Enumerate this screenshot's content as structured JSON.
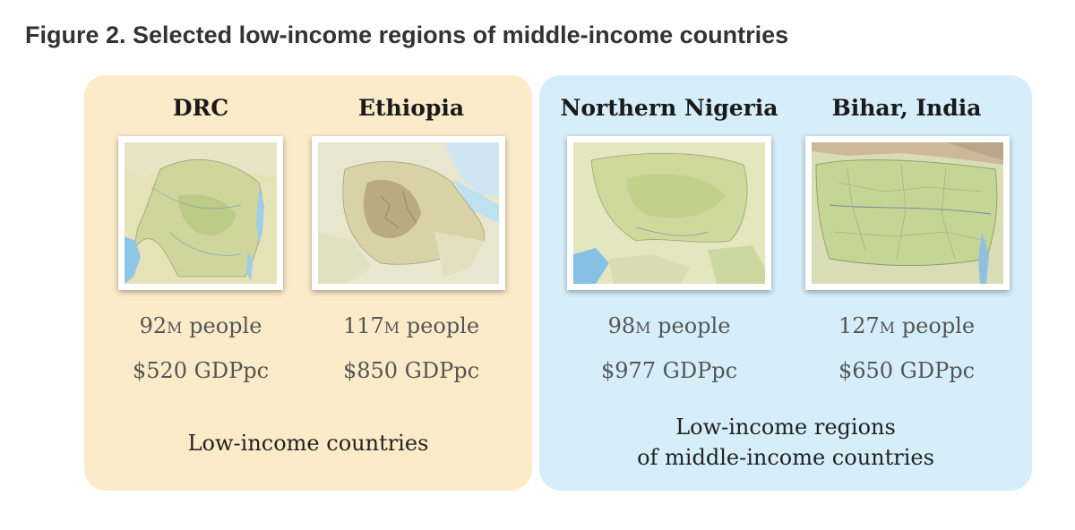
{
  "title": "Figure 2. Selected low-income regions of middle-income countries",
  "groups": [
    {
      "caption_lines": [
        "Low-income countries"
      ],
      "color": "#fcebc9",
      "regions": [
        {
          "name": "DRC",
          "people_num": "92",
          "people_unit": "M",
          "people_suffix": " people",
          "gdp": "$520 GDPpc",
          "map": "drc-relief-map"
        },
        {
          "name": "Ethiopia",
          "people_num": "117",
          "people_unit": "M",
          "people_suffix": " people",
          "gdp": "$850 GDPpc",
          "map": "ethiopia-relief-map"
        }
      ]
    },
    {
      "caption_lines": [
        "Low-income regions",
        "of middle-income countries"
      ],
      "color": "#d5eefa",
      "regions": [
        {
          "name": "Northern Nigeria",
          "people_num": "98",
          "people_unit": "M",
          "people_suffix": " people",
          "gdp": "$977 GDPpc",
          "map": "northern-nigeria-relief-map"
        },
        {
          "name": "Bihar, India",
          "people_num": "127",
          "people_unit": "M",
          "people_suffix": " people",
          "gdp": "$650 GDPpc",
          "map": "bihar-relief-map"
        }
      ]
    }
  ]
}
